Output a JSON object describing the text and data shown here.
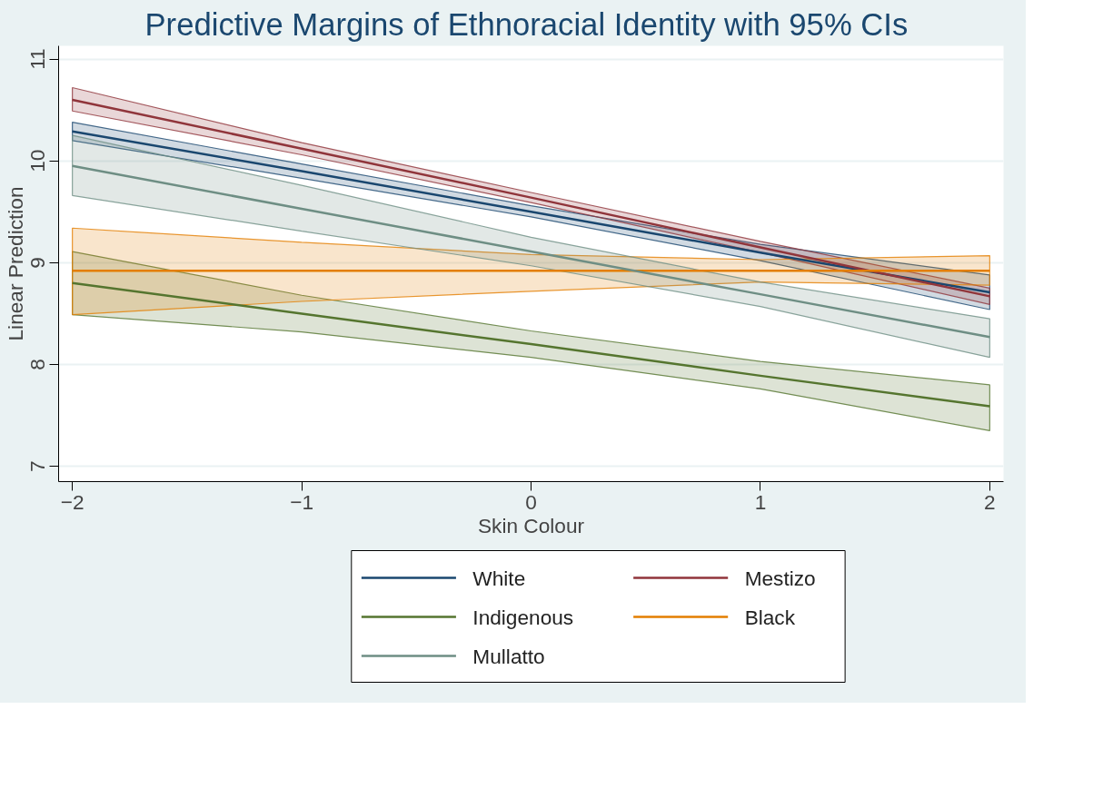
{
  "chart_data": {
    "type": "line",
    "title": "Predictive Margins of Ethnoracial Identity with 95% CIs",
    "xlabel": "Skin Colour",
    "ylabel": "Linear Prediction",
    "x": [
      -2,
      -1,
      0,
      1,
      2
    ],
    "xlim": [
      -2.06,
      2.06
    ],
    "xticks": [
      -2,
      -1,
      0,
      1,
      2
    ],
    "ylim": [
      6.85,
      11.13
    ],
    "yticks": [
      7,
      8,
      9,
      10,
      11
    ],
    "grid": "y",
    "legend": "bottom",
    "series": [
      {
        "name": "White",
        "color": "#1a476f",
        "values": [
          10.29,
          9.9,
          9.5,
          9.1,
          8.71
        ],
        "lower": [
          10.2,
          9.83,
          9.45,
          9.02,
          8.54
        ],
        "upper": [
          10.38,
          9.97,
          9.56,
          9.18,
          8.88
        ]
      },
      {
        "name": "Mestizo",
        "color": "#90353b",
        "values": [
          10.6,
          10.12,
          9.64,
          9.15,
          8.67
        ],
        "lower": [
          10.49,
          10.06,
          9.59,
          9.1,
          8.59
        ],
        "upper": [
          10.72,
          10.18,
          9.69,
          9.21,
          8.75
        ]
      },
      {
        "name": "Indigenous",
        "color": "#55752f",
        "values": [
          8.8,
          8.5,
          8.2,
          7.89,
          7.59
        ],
        "lower": [
          8.49,
          8.32,
          8.07,
          7.76,
          7.35
        ],
        "upper": [
          9.11,
          8.68,
          8.33,
          8.03,
          7.8
        ]
      },
      {
        "name": "Black",
        "color": "#e37e00",
        "values": [
          8.92,
          8.92,
          8.92,
          8.92,
          8.92
        ],
        "lower": [
          8.49,
          8.62,
          8.72,
          8.81,
          8.78
        ],
        "upper": [
          9.34,
          9.2,
          9.08,
          9.03,
          9.07
        ]
      },
      {
        "name": "Mullatto",
        "color": "#6e8e84",
        "values": [
          9.95,
          9.53,
          9.11,
          8.69,
          8.27
        ],
        "lower": [
          9.66,
          9.31,
          8.97,
          8.57,
          8.07
        ],
        "upper": [
          10.25,
          9.76,
          9.25,
          8.81,
          8.45
        ]
      }
    ]
  }
}
